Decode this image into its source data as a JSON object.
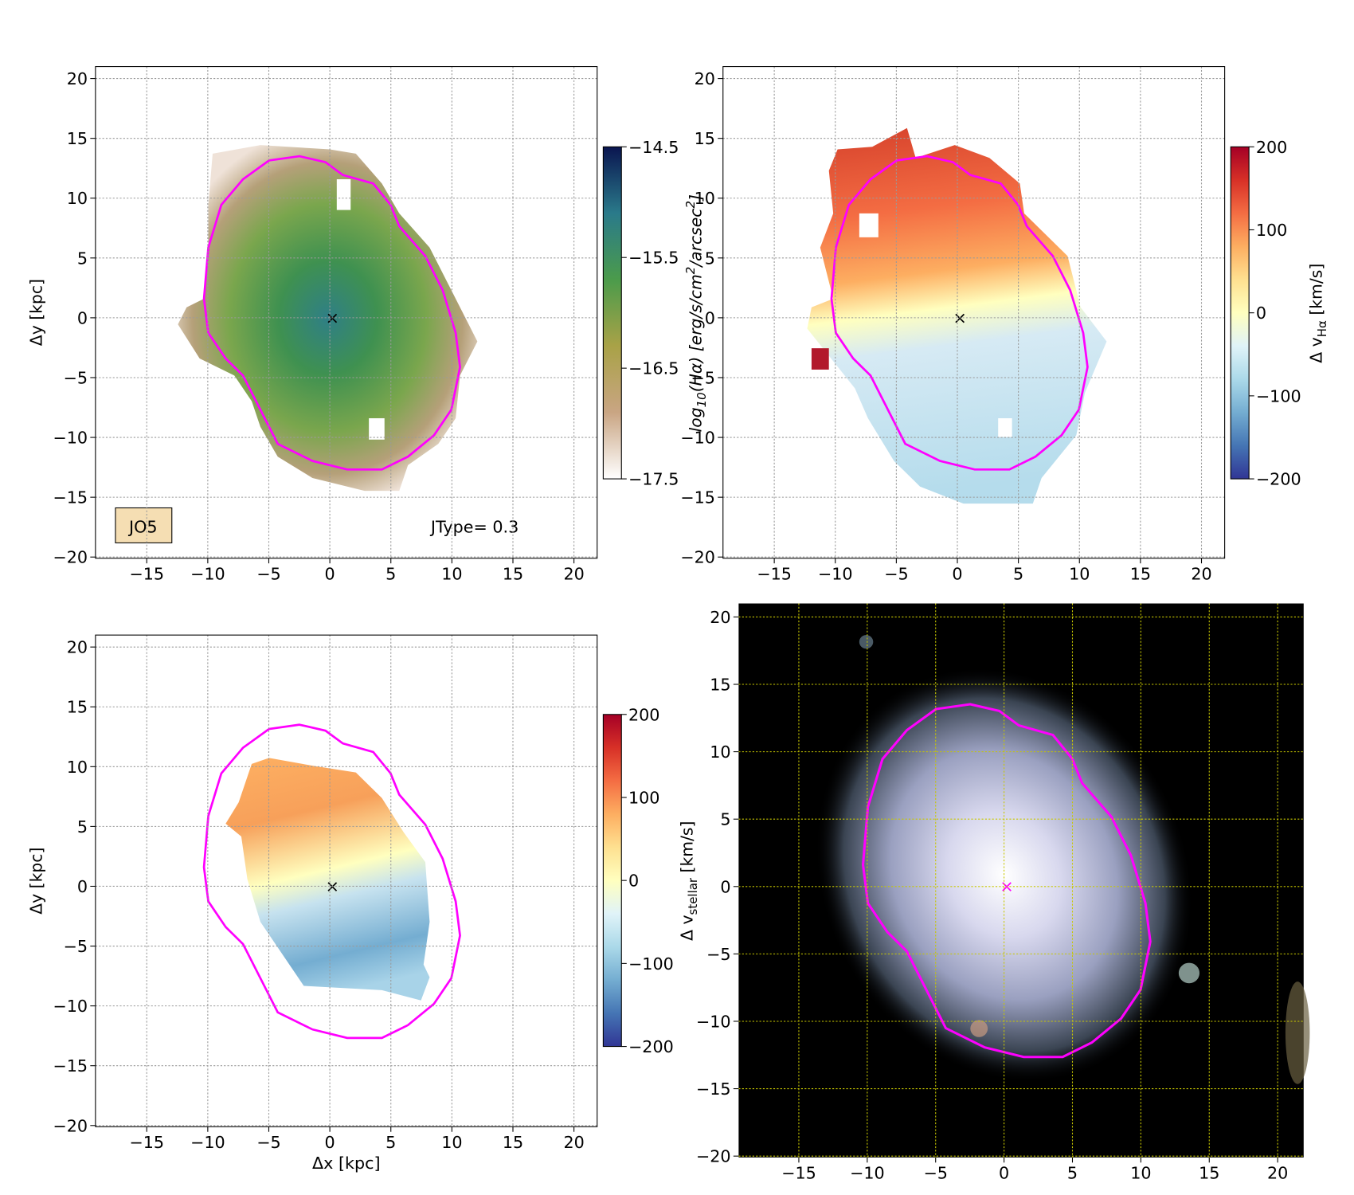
{
  "chart_data": [
    {
      "type": "image",
      "xlim": [
        -19.2,
        21.9
      ],
      "ylim": [
        -20.1,
        21.0
      ],
      "xticks": [
        {
          "value": -15,
          "label": "−15"
        },
        {
          "value": -10,
          "label": "−10"
        },
        {
          "value": -5,
          "label": "−5"
        },
        0,
        5,
        10,
        15,
        20
      ],
      "yticks": [
        {
          "value": -20,
          "label": "−20"
        },
        {
          "value": -15,
          "label": "−15"
        },
        {
          "value": -10,
          "label": "−10"
        },
        {
          "value": -5,
          "label": "−5"
        },
        0,
        5,
        10,
        15,
        20
      ],
      "grid": true,
      "grid_color": "#9a9a9a",
      "ylabel": "Δy [kpc]",
      "annotations": [
        "JO5",
        "JType= 0.3"
      ],
      "colorbar": {
        "lim": [
          -17.5,
          -14.5
        ],
        "ticks": [
          {
            "value": -14.5,
            "label": "−14.5"
          },
          {
            "value": -15.5,
            "label": "−15.5"
          },
          {
            "value": -16.5,
            "label": "−16.5"
          },
          {
            "value": -17.5,
            "label": "−17.5"
          }
        ],
        "colors": [
          "#ffffff",
          "#c9a583",
          "#a9a247",
          "#4b9b4b",
          "#2a7a8a",
          "#0a1550"
        ],
        "label": [
          "log",
          "10",
          "(Hα) [erg/s/cm",
          "2",
          "/arcsec",
          "2",
          "]"
        ]
      }
    },
    {
      "type": "image",
      "xlim": [
        -19.2,
        21.9
      ],
      "ylim": [
        -20.1,
        21.0
      ],
      "xticks": [
        {
          "value": -15,
          "label": "−15"
        },
        {
          "value": -10,
          "label": "−10"
        },
        {
          "value": -5,
          "label": "−5"
        },
        0,
        5,
        10,
        15,
        20
      ],
      "yticks": [
        {
          "value": -20,
          "label": "−20"
        },
        {
          "value": -15,
          "label": "−15"
        },
        {
          "value": -10,
          "label": "−10"
        },
        {
          "value": -5,
          "label": "−5"
        },
        0,
        5,
        10,
        15,
        20
      ],
      "grid": true,
      "grid_color": "#9a9a9a",
      "colorbar": {
        "lim": [
          -200,
          200
        ],
        "ticks": [
          200,
          100,
          0,
          {
            "value": -100,
            "label": "−100"
          },
          {
            "value": -200,
            "label": "−200"
          }
        ],
        "colors": [
          "#313695",
          "#4575b4",
          "#74add1",
          "#abd9e9",
          "#e0f3f8",
          "#ffffbf",
          "#fee090",
          "#fdae61",
          "#f46d43",
          "#d73027",
          "#a50026"
        ],
        "label": [
          "Δ v",
          "Hα",
          " [km/s]"
        ]
      }
    },
    {
      "type": "image",
      "xlim": [
        -19.2,
        21.9
      ],
      "ylim": [
        -20.1,
        21.0
      ],
      "xticks": [
        {
          "value": -15,
          "label": "−15"
        },
        {
          "value": -10,
          "label": "−10"
        },
        {
          "value": -5,
          "label": "−5"
        },
        0,
        5,
        10,
        15,
        20
      ],
      "yticks": [
        {
          "value": -20,
          "label": "−20"
        },
        {
          "value": -15,
          "label": "−15"
        },
        {
          "value": -10,
          "label": "−10"
        },
        {
          "value": -5,
          "label": "−5"
        },
        0,
        5,
        10,
        15,
        20
      ],
      "grid": true,
      "grid_color": "#9a9a9a",
      "xlabel": "Δx [kpc]",
      "ylabel": "Δy [kpc]",
      "colorbar": {
        "lim": [
          -200,
          200
        ],
        "ticks": [
          200,
          100,
          0,
          {
            "value": -100,
            "label": "−100"
          },
          {
            "value": -200,
            "label": "−200"
          }
        ],
        "colors": [
          "#313695",
          "#4575b4",
          "#74add1",
          "#abd9e9",
          "#e0f3f8",
          "#ffffbf",
          "#fee090",
          "#fdae61",
          "#f46d43",
          "#d73027",
          "#a50026"
        ],
        "label": [
          "Δ v",
          "stellar",
          " [km/s]"
        ]
      }
    },
    {
      "type": "image",
      "xlim": [
        -19.4,
        21.9
      ],
      "ylim": [
        -20.1,
        21.0
      ],
      "xticks": [
        {
          "value": -15,
          "label": "−15"
        },
        {
          "value": -10,
          "label": "−10"
        },
        {
          "value": -5,
          "label": "−5"
        },
        0,
        5,
        10,
        15,
        20
      ],
      "yticks": [
        {
          "value": -20,
          "label": "−20"
        },
        {
          "value": -15,
          "label": "−15"
        },
        {
          "value": -10,
          "label": "−10"
        },
        {
          "value": -5,
          "label": "−5"
        },
        0,
        5,
        10,
        15,
        20
      ],
      "grid": true,
      "grid_color": "#c8c800"
    }
  ]
}
